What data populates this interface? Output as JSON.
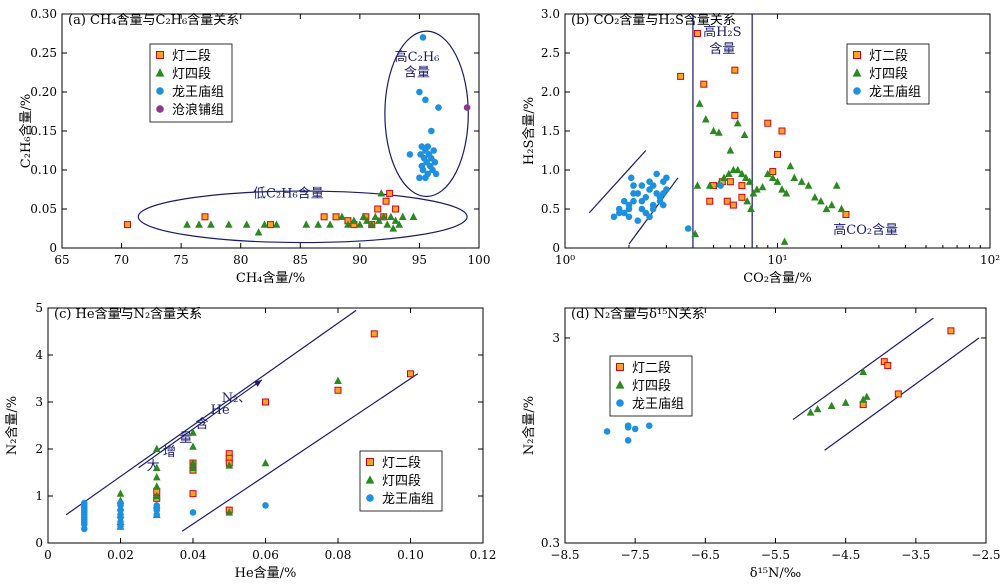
{
  "colors": {
    "deng2": "#f5a623",
    "deng2_stroke": "#d0021b",
    "deng4": "#2a8a1f",
    "longwang": "#1e90e0",
    "canglang": "#8b3a8b",
    "annotation": "#1a1a6e"
  },
  "chart_data": [
    {
      "id": "a",
      "type": "scatter",
      "title": "(a) CH₄含量与C₂H₆含量关系",
      "xlabel": "CH₄含量/%",
      "ylabel": "C₂H₆含量/%",
      "xlim": [
        65,
        100
      ],
      "ylim": [
        0,
        0.3
      ],
      "xticks": [
        65,
        70,
        75,
        80,
        85,
        90,
        95,
        100
      ],
      "yticks": [
        0,
        0.05,
        0.1,
        0.15,
        0.2,
        0.25,
        0.3
      ],
      "ytick_labels": [
        "0",
        "0.05",
        "0.10",
        "0.15",
        "0.20",
        "0.25",
        "0.30"
      ],
      "legend": {
        "position": "top-left",
        "entries": [
          "灯二段",
          "灯四段",
          "龙王庙组",
          "沧浪铺组"
        ]
      },
      "annotations": [
        {
          "text": "低C₂H₆含量",
          "x": 84,
          "y": 0.065
        },
        {
          "text": "高C₂H₆",
          "x": 94.8,
          "y": 0.24
        },
        {
          "text": "含量",
          "x": 94.8,
          "y": 0.22
        }
      ],
      "ellipses": [
        {
          "cx": 85.2,
          "cy": 0.04,
          "rx": 13.8,
          "ry": 0.033
        },
        {
          "cx": 95.6,
          "cy": 0.172,
          "rx": 3.5,
          "ry": 0.106
        }
      ],
      "series": [
        {
          "name": "灯二段",
          "marker": "square",
          "x": [
            70.5,
            77,
            82.5,
            87,
            88,
            89.5,
            90.5,
            91.5,
            92.2,
            92.5,
            93,
            92,
            91,
            89
          ],
          "y": [
            0.03,
            0.04,
            0.03,
            0.04,
            0.04,
            0.03,
            0.04,
            0.05,
            0.06,
            0.07,
            0.05,
            0.04,
            0.03,
            0.035
          ]
        },
        {
          "name": "灯四段",
          "marker": "triangle",
          "x": [
            75.5,
            76.5,
            77.5,
            79,
            80.5,
            81.5,
            82,
            83,
            85.5,
            86.5,
            87.5,
            88.5,
            89,
            89.5,
            90,
            90.3,
            90.6,
            91,
            91.3,
            91.6,
            92,
            92.3,
            92.6,
            93,
            93.3,
            93.6,
            94.5,
            91.8,
            92.8
          ],
          "y": [
            0.03,
            0.03,
            0.03,
            0.03,
            0.03,
            0.02,
            0.03,
            0.03,
            0.03,
            0.03,
            0.03,
            0.04,
            0.03,
            0.035,
            0.03,
            0.04,
            0.035,
            0.03,
            0.04,
            0.035,
            0.04,
            0.03,
            0.04,
            0.035,
            0.03,
            0.04,
            0.04,
            0.07,
            0.025
          ]
        },
        {
          "name": "龙王庙组",
          "marker": "circle",
          "x": [
            95.3,
            95,
            95.5,
            96,
            95.7,
            95.2,
            95.5,
            96.2,
            95.1,
            95.8,
            96,
            95.4,
            95.6,
            96.3,
            95.2,
            95.9,
            96.1,
            95.3,
            95.7,
            96.4,
            95,
            95.5,
            94.2,
            96.6
          ],
          "y": [
            0.27,
            0.2,
            0.19,
            0.15,
            0.13,
            0.13,
            0.125,
            0.125,
            0.12,
            0.12,
            0.115,
            0.115,
            0.11,
            0.11,
            0.105,
            0.105,
            0.1,
            0.1,
            0.095,
            0.095,
            0.09,
            0.09,
            0.12,
            0.18
          ]
        },
        {
          "name": "沧浪铺组",
          "marker": "circle",
          "x": [
            99
          ],
          "y": [
            0.18
          ]
        }
      ]
    },
    {
      "id": "b",
      "type": "scatter",
      "title": "(b) CO₂含量与H₂S含量关系",
      "xlabel": "CO₂含量/%",
      "ylabel": "H₂S含量/%",
      "xscale": "log",
      "xlim": [
        1,
        100
      ],
      "ylim": [
        0,
        3.0
      ],
      "xticks": [
        1,
        10,
        100
      ],
      "xtick_labels": [
        "10⁰",
        "10¹",
        "10²"
      ],
      "yticks": [
        0,
        0.5,
        1.0,
        1.5,
        2.0,
        2.5,
        3.0
      ],
      "ytick_labels": [
        "0",
        "0.5",
        "1.0",
        "1.5",
        "2.0",
        "2.5",
        "3.0"
      ],
      "legend": {
        "position": "top-right",
        "entries": [
          "灯二段",
          "灯四段",
          "龙王庙组"
        ]
      },
      "annotations": [
        {
          "text": "高H₂S",
          "x": 5.5,
          "y": 2.72
        },
        {
          "text": "含量",
          "x": 5.5,
          "y": 2.5
        },
        {
          "text": "高CO₂含量",
          "x": 26,
          "y": 0.18
        }
      ],
      "vlines": [
        4,
        7.6
      ],
      "series": [
        {
          "name": "灯二段",
          "marker": "square",
          "x": [
            3.5,
            4.2,
            4.5,
            6.3,
            6.3,
            5.5,
            6,
            6.8,
            5,
            5.8,
            6.8,
            9,
            10.5,
            10,
            9.5,
            21,
            4.8,
            6.2
          ],
          "y": [
            2.2,
            2.75,
            2.1,
            2.28,
            1.7,
            0.85,
            0.85,
            0.8,
            0.8,
            0.6,
            0.65,
            1.6,
            1.5,
            1.2,
            0.98,
            0.43,
            0.6,
            0.55
          ]
        },
        {
          "name": "灯四段",
          "marker": "triangle",
          "x": [
            4.3,
            4.6,
            5,
            5.3,
            6,
            6.5,
            7,
            4.2,
            4.8,
            5.3,
            5.6,
            5.9,
            6.2,
            6.5,
            6.8,
            7.1,
            7.4,
            7.7,
            8,
            8.5,
            9,
            9.5,
            10,
            10.5,
            11,
            11.5,
            12,
            13,
            14,
            15,
            16,
            17,
            18,
            19,
            20,
            7.2,
            7.5,
            10.8,
            4.1
          ],
          "y": [
            1.85,
            1.65,
            1.5,
            1.48,
            1.25,
            1.6,
            1.45,
            0.8,
            0.8,
            0.82,
            0.9,
            0.95,
            1.0,
            1.0,
            0.95,
            0.9,
            0.85,
            0.7,
            0.75,
            0.78,
            0.95,
            0.9,
            0.85,
            0.75,
            0.7,
            1.05,
            0.9,
            0.85,
            0.8,
            0.65,
            0.6,
            0.5,
            0.55,
            0.8,
            0.5,
            0.6,
            0.5,
            0.08,
            0.18
          ]
        },
        {
          "name": "龙王庙组",
          "marker": "circle",
          "x": [
            1.7,
            1.8,
            1.9,
            2.0,
            2.1,
            2.2,
            2.3,
            2.4,
            2.5,
            2.6,
            2.7,
            2.8,
            2.9,
            3.0,
            2.0,
            2.2,
            2.4,
            2.6,
            2.8,
            3.0,
            1.9,
            2.1,
            2.3,
            2.5,
            2.7,
            2.9,
            2.0,
            2.3,
            2.6,
            2.9,
            1.8,
            2.1,
            2.5,
            3.8,
            5.4,
            2.05
          ],
          "y": [
            0.4,
            0.5,
            0.45,
            0.55,
            0.6,
            0.7,
            0.5,
            0.65,
            0.75,
            0.8,
            0.7,
            0.6,
            0.85,
            0.75,
            0.4,
            0.35,
            0.45,
            0.55,
            0.65,
            0.9,
            0.6,
            0.7,
            0.8,
            0.85,
            0.95,
            0.55,
            0.5,
            0.6,
            0.5,
            0.7,
            0.45,
            0.8,
            0.4,
            0.25,
            0.8,
            0.9
          ]
        }
      ]
    },
    {
      "id": "c",
      "type": "scatter",
      "title": "(c) He含量与N₂含量关系",
      "xlabel": "He含量/%",
      "ylabel": "N₂含量/%",
      "xlim": [
        0,
        0.12
      ],
      "ylim": [
        0,
        5
      ],
      "xticks": [
        0,
        0.02,
        0.04,
        0.06,
        0.08,
        0.1,
        0.12
      ],
      "xtick_labels": [
        "0",
        "0.02",
        "0.04",
        "0.06",
        "0.08",
        "0.10",
        "0.12"
      ],
      "yticks": [
        0,
        1,
        2,
        3,
        4,
        5
      ],
      "legend": {
        "position": "bottom-right",
        "entries": [
          "灯二段",
          "灯四段",
          "龙王庙组"
        ]
      },
      "annotations": [
        {
          "text": "大",
          "x": 0.029,
          "y": 1.55
        },
        {
          "text": "增",
          "x": 0.0335,
          "y": 1.85
        },
        {
          "text": "量",
          "x": 0.038,
          "y": 2.15
        },
        {
          "text": "含",
          "x": 0.0425,
          "y": 2.45
        },
        {
          "text": "He",
          "x": 0.0475,
          "y": 2.75
        },
        {
          "text": "N₂、",
          "x": 0.052,
          "y": 3.0
        }
      ],
      "guide_lines": [
        {
          "x": [
            0.005,
            0.085
          ],
          "y": [
            0.6,
            4.95
          ]
        },
        {
          "x": [
            0.037,
            0.102
          ],
          "y": [
            0.25,
            3.6
          ]
        }
      ],
      "arrow": {
        "x": [
          0.025,
          0.059
        ],
        "y": [
          1.6,
          3.47
        ]
      },
      "series": [
        {
          "name": "灯二段",
          "marker": "square",
          "x": [
            0.03,
            0.03,
            0.04,
            0.04,
            0.04,
            0.05,
            0.05,
            0.05,
            0.05,
            0.06,
            0.08,
            0.09,
            0.1
          ],
          "y": [
            1.1,
            0.95,
            1.7,
            1.55,
            1.05,
            1.9,
            1.8,
            1.7,
            0.7,
            3.0,
            3.25,
            4.45,
            3.6
          ]
        },
        {
          "name": "灯四段",
          "marker": "triangle",
          "x": [
            0.02,
            0.02,
            0.02,
            0.02,
            0.02,
            0.02,
            0.03,
            0.03,
            0.03,
            0.03,
            0.03,
            0.03,
            0.03,
            0.04,
            0.04,
            0.04,
            0.04,
            0.05,
            0.05,
            0.06,
            0.08
          ],
          "y": [
            1.05,
            0.9,
            0.75,
            0.6,
            0.45,
            0.35,
            2.0,
            1.6,
            1.4,
            1.2,
            1.0,
            0.8,
            0.6,
            2.35,
            2.05,
            1.7,
            1.6,
            1.65,
            0.65,
            1.7,
            3.45
          ]
        },
        {
          "name": "龙王庙组",
          "marker": "circle",
          "x": [
            0.01,
            0.01,
            0.01,
            0.01,
            0.01,
            0.01,
            0.01,
            0.01,
            0.01,
            0.01,
            0.01,
            0.02,
            0.02,
            0.02,
            0.02,
            0.02,
            0.02,
            0.02,
            0.03,
            0.03,
            0.03,
            0.04,
            0.06
          ],
          "y": [
            0.85,
            0.8,
            0.75,
            0.7,
            0.65,
            0.6,
            0.55,
            0.5,
            0.45,
            0.4,
            0.3,
            0.85,
            0.8,
            0.7,
            0.6,
            0.55,
            0.45,
            0.35,
            0.8,
            0.7,
            0.6,
            0.65,
            0.8
          ]
        }
      ]
    },
    {
      "id": "d",
      "type": "scatter",
      "title": "(d) N₂含量与δ¹⁵N关系",
      "xlabel": "δ¹⁵N/‰",
      "ylabel": "N₂含量/%",
      "yscale": "log",
      "xlim": [
        -8.5,
        -2.5
      ],
      "ylim": [
        0.3,
        4.2
      ],
      "xticks": [
        -8.5,
        -7.5,
        -6.5,
        -5.5,
        -4.5,
        -3.5,
        -2.5
      ],
      "xtick_labels": [
        "−8.5",
        "−7.5",
        "−6.5",
        "−5.5",
        "−4.5",
        "−3.5",
        "−2.5"
      ],
      "yticks": [
        0.3,
        3
      ],
      "ytick_labels": [
        "0.3",
        "3"
      ],
      "legend": {
        "position": "top-left",
        "entries": [
          "灯二段",
          "灯四段",
          "龙王庙组"
        ]
      },
      "guide_lines": [
        {
          "x": [
            -5.25,
            -3.25
          ],
          "y": [
            1.2,
            3.75
          ]
        },
        {
          "x": [
            -4.8,
            -2.6
          ],
          "y": [
            0.85,
            3.0
          ]
        }
      ],
      "series": [
        {
          "name": "灯二段",
          "marker": "square",
          "x": [
            -3.0,
            -3.95,
            -3.9,
            -3.75,
            -4.25
          ],
          "y": [
            3.25,
            2.3,
            2.2,
            1.6,
            1.42
          ]
        },
        {
          "name": "灯四段",
          "marker": "triangle",
          "x": [
            -5.0,
            -4.9,
            -4.7,
            -4.5,
            -4.25,
            -4.2,
            -4.25
          ],
          "y": [
            1.3,
            1.35,
            1.4,
            1.45,
            1.5,
            1.55,
            2.05
          ]
        },
        {
          "name": "龙王庙组",
          "marker": "circle",
          "x": [
            -7.9,
            -7.6,
            -7.5,
            -7.3,
            -7.6,
            -7.6
          ],
          "y": [
            1.05,
            1.12,
            1.08,
            1.12,
            0.95,
            1.1
          ]
        }
      ]
    }
  ]
}
